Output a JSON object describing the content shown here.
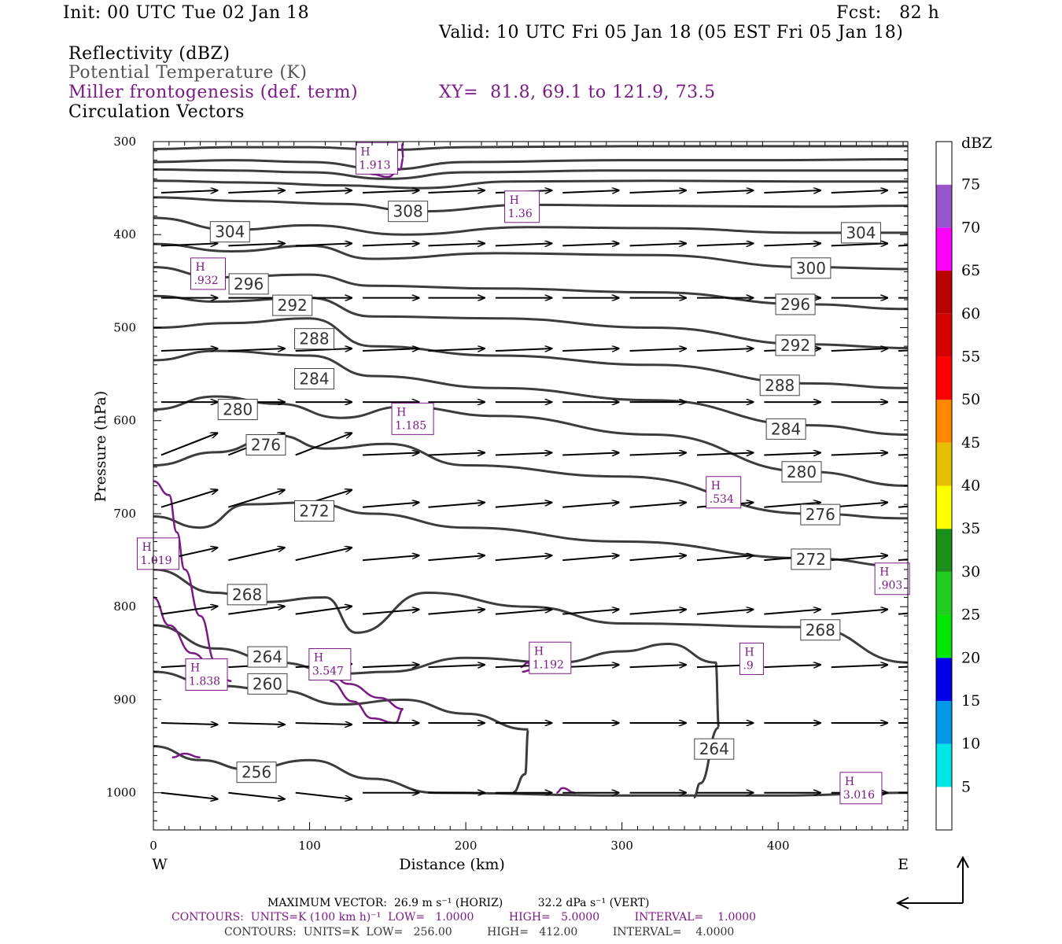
{
  "header": {
    "init": "Init: 00 UTC Tue 02 Jan 18",
    "fcst": "Fcst:   82 h",
    "valid": "Valid: 10 UTC Fri 05 Jan 18 (05 EST Fri 05 Jan 18)",
    "field1": "Reflectivity (dBZ)",
    "field2": "Potential Temperature (K)",
    "field3": "Miller frontogenesis (def. term)",
    "field4": "Circulation Vectors",
    "xy": "XY=  81.8, 69.1 to 121.9, 73.5"
  },
  "colors": {
    "theta": "#3c3c3c",
    "frontogenesis": "#7a1a84",
    "vectors": "#000000"
  },
  "chart_data": {
    "type": "cross-section",
    "xlabel": "Distance (km)",
    "ylabel": "Pressure (hPa)",
    "xlim": [
      0,
      483
    ],
    "ylim": [
      1040,
      300
    ],
    "yscale": "linear",
    "x_ticks": [
      "0",
      "100",
      "200",
      "300",
      "400"
    ],
    "y_ticks": [
      "300",
      "400",
      "500",
      "600",
      "700",
      "800",
      "900",
      "1000"
    ],
    "left_end": "W",
    "right_end": "E",
    "theta_labels": [
      {
        "text": "308",
        "x": 163,
        "p": 375
      },
      {
        "text": "304",
        "x": 49,
        "p": 397
      },
      {
        "text": "304",
        "x": 453,
        "p": 398
      },
      {
        "text": "300",
        "x": 421,
        "p": 436
      },
      {
        "text": "296",
        "x": 61,
        "p": 453
      },
      {
        "text": "296",
        "x": 411,
        "p": 475
      },
      {
        "text": "292",
        "x": 89,
        "p": 476
      },
      {
        "text": "292",
        "x": 411,
        "p": 519
      },
      {
        "text": "288",
        "x": 103,
        "p": 512
      },
      {
        "text": "288",
        "x": 401,
        "p": 562
      },
      {
        "text": "284",
        "x": 103,
        "p": 555
      },
      {
        "text": "284",
        "x": 405,
        "p": 609
      },
      {
        "text": "280",
        "x": 54,
        "p": 588
      },
      {
        "text": "280",
        "x": 415,
        "p": 655
      },
      {
        "text": "276",
        "x": 72,
        "p": 626
      },
      {
        "text": "276",
        "x": 427,
        "p": 701
      },
      {
        "text": "272",
        "x": 103,
        "p": 697
      },
      {
        "text": "272",
        "x": 421,
        "p": 749
      },
      {
        "text": "268",
        "x": 60,
        "p": 787
      },
      {
        "text": "268",
        "x": 427,
        "p": 825
      },
      {
        "text": "264",
        "x": 73,
        "p": 854
      },
      {
        "text": "264",
        "x": 359,
        "p": 953
      },
      {
        "text": "260",
        "x": 73,
        "p": 883
      },
      {
        "text": "256",
        "x": 66,
        "p": 978
      }
    ],
    "frontogenesis_maxima": [
      {
        "label": "H",
        "value": "1.913",
        "x": 143,
        "p": 318
      },
      {
        "label": "H",
        "value": "1.36",
        "x": 236,
        "p": 370
      },
      {
        "label": "H",
        "value": ".932",
        "x": 35,
        "p": 442
      },
      {
        "label": "H",
        "value": "1.185",
        "x": 166,
        "p": 598
      },
      {
        "label": "H",
        "value": ".534",
        "x": 365,
        "p": 677
      },
      {
        "label": "H",
        "value": "1.019",
        "x": 3,
        "p": 743
      },
      {
        "label": "H",
        "value": ".903",
        "x": 473,
        "p": 770
      },
      {
        "label": "H",
        "value": "1.192",
        "x": 254,
        "p": 855
      },
      {
        "label": "H",
        "value": ".9",
        "x": 383,
        "p": 856
      },
      {
        "label": "H",
        "value": "3.547",
        "x": 113,
        "p": 862
      },
      {
        "label": "H",
        "value": "1.838",
        "x": 34,
        "p": 873
      },
      {
        "label": "H",
        "value": "3.016",
        "x": 453,
        "p": 995
      }
    ],
    "vector_rows": [
      {
        "p": 355,
        "u": 1.0,
        "w": 0.05
      },
      {
        "p": 412,
        "u": 1.0,
        "w": 0.05
      },
      {
        "p": 468,
        "u": 1.0,
        "w": 0.0
      },
      {
        "p": 525,
        "u": 1.0,
        "w": 0.05
      },
      {
        "p": 580,
        "u": 1.0,
        "w": 0.0
      },
      {
        "p": 637,
        "u": 1.0,
        "w": 0.05
      },
      {
        "p": 693,
        "u": 1.0,
        "w": 0.1
      },
      {
        "p": 750,
        "u": 1.0,
        "w": 0.1
      },
      {
        "p": 808,
        "u": 1.0,
        "w": 0.1
      },
      {
        "p": 865,
        "u": 1.0,
        "w": 0.05
      },
      {
        "p": 925,
        "u": 1.0,
        "w": 0.0
      },
      {
        "p": 1000,
        "u": 1.0,
        "w": 0.0
      }
    ],
    "colorbar": {
      "unit": "dBZ",
      "levels": [
        "5",
        "10",
        "15",
        "20",
        "25",
        "30",
        "35",
        "40",
        "45",
        "50",
        "55",
        "60",
        "65",
        "70",
        "75"
      ],
      "colors": [
        "#ffffff",
        "#00e5e5",
        "#0099e6",
        "#0000e6",
        "#00e600",
        "#22cc22",
        "#1a8f1a",
        "#ffff00",
        "#e5c000",
        "#ff8800",
        "#ff0000",
        "#d50000",
        "#bb0000",
        "#ff00ff",
        "#9955cc",
        "#ffffff"
      ]
    }
  },
  "footer": {
    "max_vector": "MAXIMUM VECTOR:  26.9 m s⁻¹ (HORIZ)          32.2 dPa s⁻¹ (VERT)",
    "contours_purple": "CONTOURS:  UNITS=K (100 km h)⁻¹  LOW=   1.0000          HIGH=   5.0000          INTERVAL=    1.0000",
    "contours_black": "CONTOURS:  UNITS=K  LOW=   256.00          HIGH=   412.00          INTERVAL=    4.0000"
  }
}
